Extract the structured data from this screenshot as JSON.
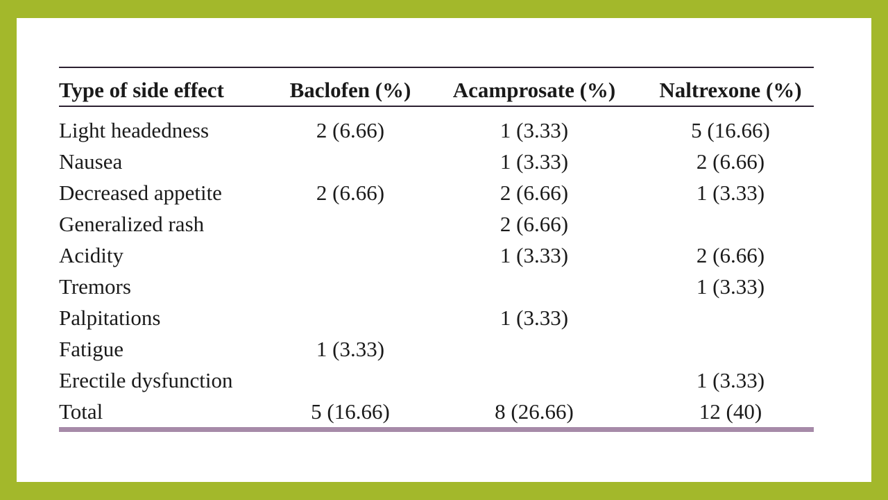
{
  "table": {
    "headers": [
      "Type of side effect",
      "Baclofen (%)",
      "Acamprosate (%)",
      "Naltrexone (%)"
    ],
    "rows": [
      [
        "Light headedness",
        "2 (6.66)",
        "1 (3.33)",
        "5 (16.66)"
      ],
      [
        "Nausea",
        null,
        "1 (3.33)",
        "2 (6.66)"
      ],
      [
        "Decreased appetite",
        "2 (6.66)",
        "2 (6.66)",
        "1 (3.33)"
      ],
      [
        "Generalized rash",
        null,
        "2 (6.66)",
        null
      ],
      [
        "Acidity",
        null,
        "1 (3.33)",
        "2 (6.66)"
      ],
      [
        "Tremors",
        null,
        null,
        "1 (3.33)"
      ],
      [
        "Palpitations",
        null,
        "1 (3.33)",
        null
      ],
      [
        "Fatigue",
        "1 (3.33)",
        null,
        null
      ],
      [
        "Erectile dysfunction",
        null,
        null,
        "1 (3.33)"
      ],
      [
        "Total",
        "5 (16.66)",
        "8 (26.66)",
        "12 (40)"
      ]
    ]
  }
}
